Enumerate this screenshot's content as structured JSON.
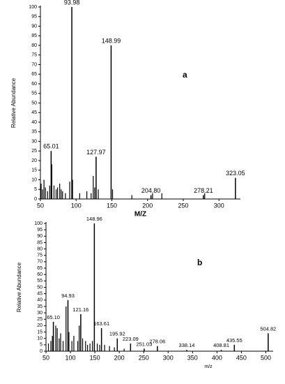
{
  "chart_data": [
    {
      "type": "spectrum",
      "annotation": "a",
      "xlabel": "M/Z",
      "ylabel": "Relative Abundance",
      "xlim": [
        50,
        330
      ],
      "ylim": [
        0,
        100
      ],
      "xticks": [
        50,
        100,
        150,
        200,
        250,
        300
      ],
      "yticks": [
        0,
        5,
        10,
        15,
        20,
        25,
        30,
        35,
        40,
        45,
        50,
        55,
        60,
        65,
        70,
        75,
        80,
        85,
        90,
        95,
        100
      ],
      "color": "#000000",
      "peaks": {
        "x": [
          65.01,
          93.98,
          127.97,
          148.99,
          204.8,
          278.21,
          323.05
        ],
        "x_labels": [
          "65.01",
          "93.98",
          "127.97",
          "148.99",
          "204.80",
          "278.21",
          "323.05"
        ],
        "values": [
          25,
          100,
          22,
          80,
          2,
          2,
          11
        ]
      },
      "minor_peaks": {
        "x": [
          51,
          53,
          55,
          57,
          60,
          63,
          66,
          69,
          72,
          74,
          77,
          79,
          81,
          85,
          91,
          95,
          105,
          115,
          121,
          124,
          126,
          131,
          151,
          178,
          207,
          220,
          280
        ],
        "values": [
          8,
          5,
          10,
          6,
          4,
          7,
          18,
          7,
          5,
          6,
          8,
          5,
          4,
          3,
          9,
          10,
          3,
          4,
          3,
          12,
          6,
          5,
          5,
          2,
          3,
          3,
          3
        ]
      }
    },
    {
      "type": "spectrum",
      "annotation": "b",
      "xlabel": "m/z",
      "ylabel": "Relative Abundance",
      "xlim": [
        50,
        515
      ],
      "ylim": [
        0,
        100
      ],
      "xticks": [
        50,
        100,
        150,
        200,
        250,
        300,
        350,
        400,
        450,
        500
      ],
      "yticks": [
        0,
        5,
        10,
        15,
        20,
        25,
        30,
        35,
        40,
        45,
        50,
        55,
        60,
        65,
        70,
        75,
        80,
        85,
        90,
        95,
        100
      ],
      "color": "#000000",
      "peaks": {
        "x": [
          65.1,
          94.93,
          121.16,
          148.96,
          163.61,
          195.92,
          223.09,
          251.03,
          278.06,
          338.14,
          408.81,
          435.55,
          504.82
        ],
        "x_labels": [
          "65.10",
          "94.93",
          "121.16",
          "148.96",
          "163.61",
          "195.92",
          "223.09",
          "251.03",
          "278.06",
          "338.14",
          "408.81",
          "435.55",
          "504.82"
        ],
        "values": [
          23,
          40,
          29,
          100,
          18,
          10,
          6,
          2,
          4,
          1,
          1,
          5,
          14
        ]
      },
      "minor_peaks": {
        "x": [
          55,
          60,
          63,
          70,
          73,
          77,
          80,
          85,
          91,
          97,
          103,
          107,
          115,
          118,
          125,
          131,
          135,
          140,
          145,
          155,
          160,
          170,
          180,
          190,
          210
        ],
        "values": [
          6,
          8,
          12,
          20,
          18,
          10,
          14,
          8,
          35,
          15,
          8,
          12,
          8,
          20,
          10,
          8,
          5,
          6,
          8,
          6,
          5,
          5,
          4,
          3,
          2
        ]
      }
    }
  ]
}
